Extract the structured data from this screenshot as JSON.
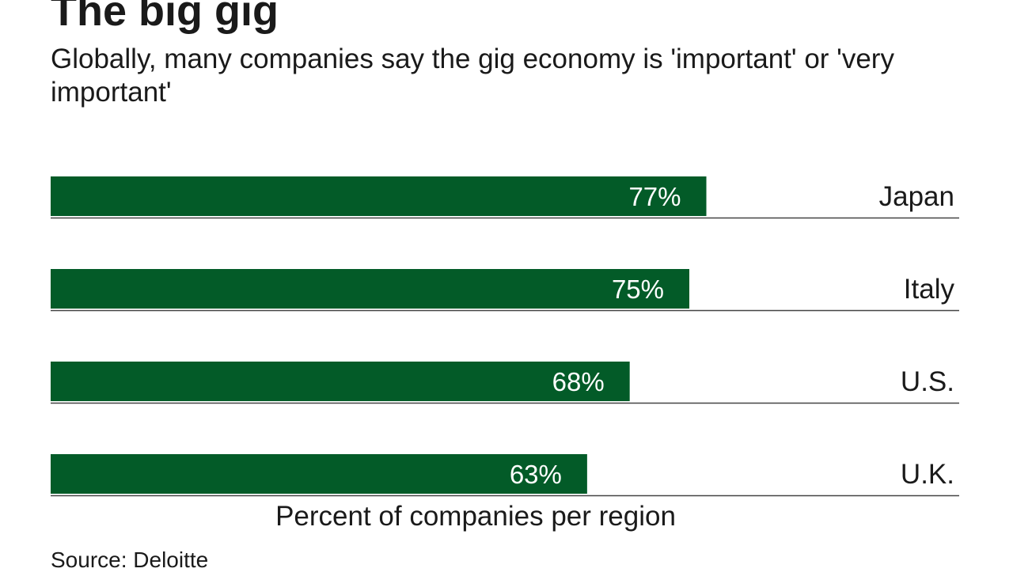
{
  "title": "The big gig",
  "subtitle": "Globally, many companies say the gig economy is 'important' or 'very important'",
  "source": "Source: Deloitte",
  "chart_data": {
    "type": "bar",
    "orientation": "horizontal",
    "categories": [
      "Japan",
      "Italy",
      "U.S.",
      "U.K."
    ],
    "values": [
      77,
      75,
      68,
      63
    ],
    "data_labels": [
      "77%",
      "75%",
      "68%",
      "63%"
    ],
    "title": "The big gig",
    "subtitle": "Globally, many companies say the gig economy is 'important' or 'very important'",
    "xlabel": "Percent of companies per region",
    "ylabel": "",
    "xlim": [
      0,
      100
    ],
    "grid": false,
    "legend": "none",
    "bar_color": "#035b28",
    "label_color": "#ffffff"
  }
}
